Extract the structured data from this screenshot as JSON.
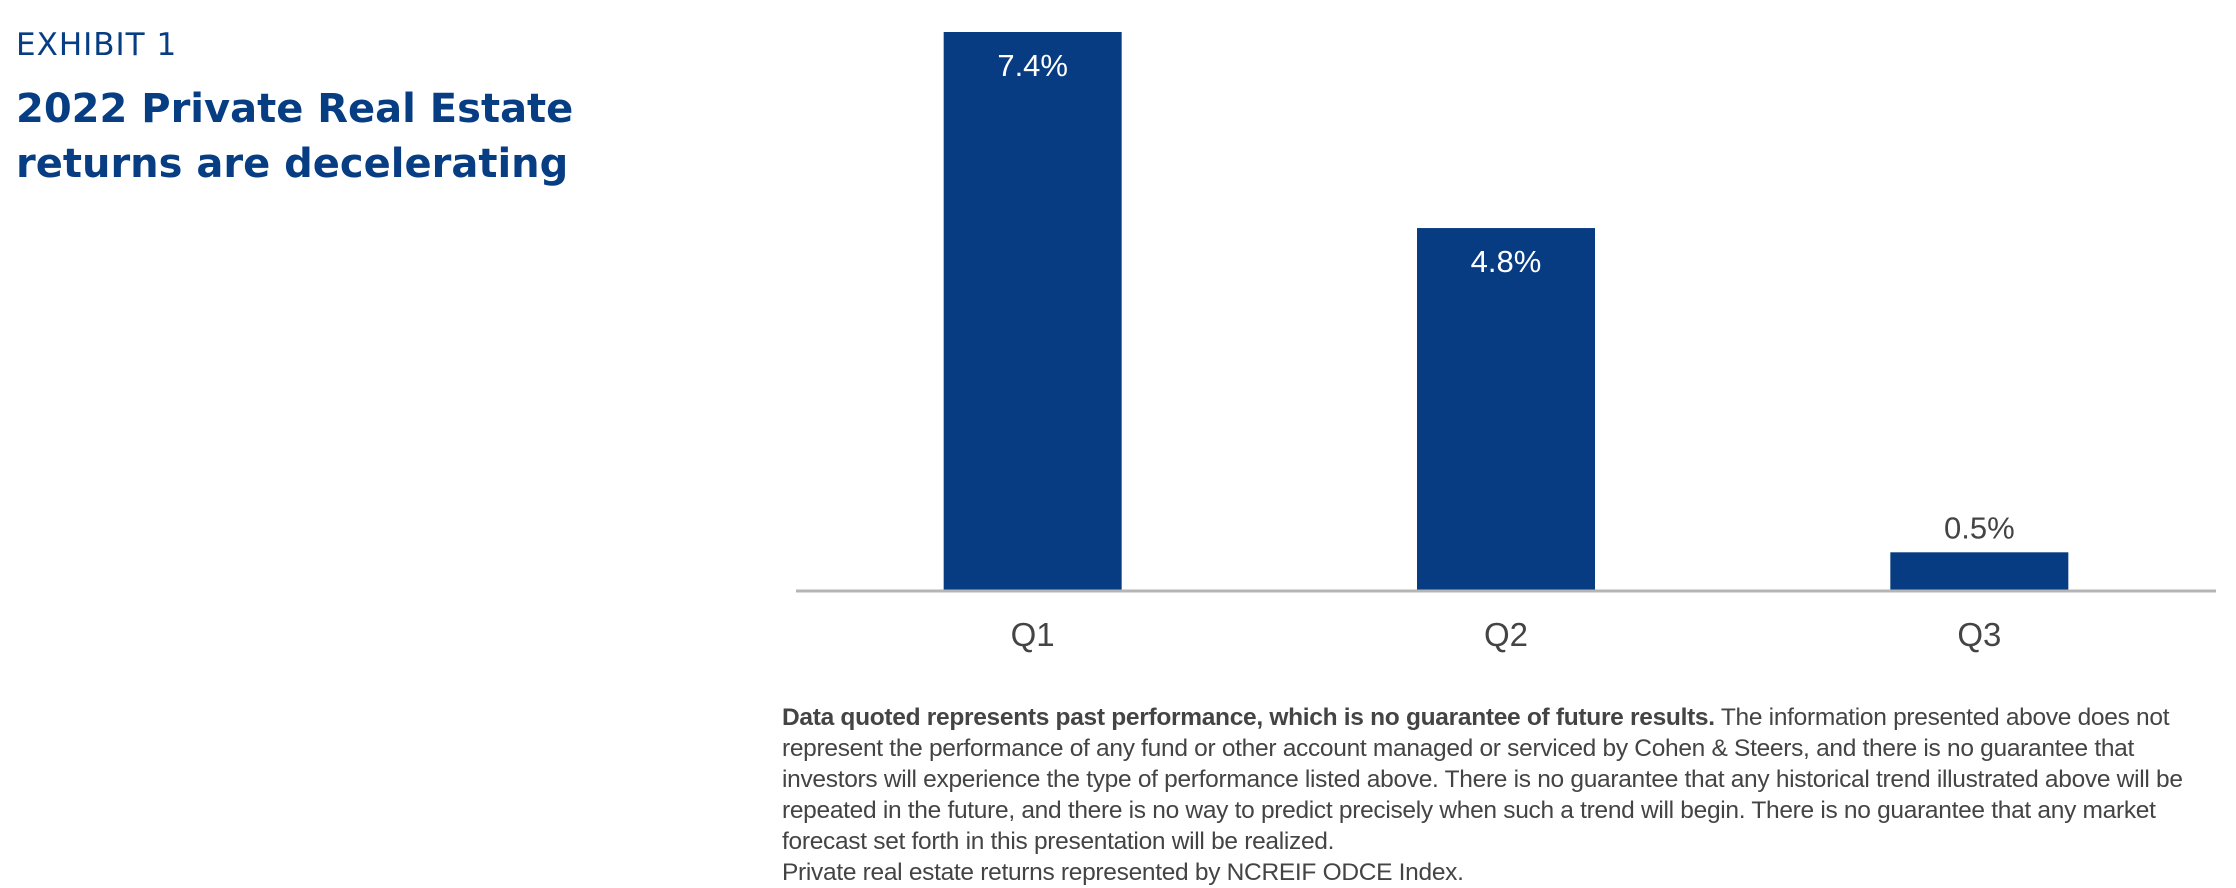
{
  "exhibit": {
    "label": "EXHIBIT 1",
    "title": "2022 Private Real Estate returns are decelerating"
  },
  "chart_data": {
    "type": "bar",
    "categories": [
      "Q1",
      "Q2",
      "Q3"
    ],
    "values": [
      7.4,
      4.8,
      0.5
    ],
    "value_labels": [
      "7.4%",
      "4.8%",
      "0.5%"
    ],
    "title": "2022 Private Real Estate returns are decelerating",
    "xlabel": "",
    "ylabel": "",
    "ylim": [
      0,
      7.4
    ],
    "grid": false,
    "legend": "none",
    "bar_color": "#073b82",
    "axis_color": "#b5b5b5"
  },
  "disclaimer": {
    "bold_text": "Data quoted represents past performance, which is no guarantee of future results.",
    "body_text": " The information presented above does not represent the performance of any fund or other account managed or serviced by Cohen & Steers, and there is no guarantee that investors will experience the type of performance listed above. There is no guarantee that any historical trend illustrated above will be repeated in the future, and there is no way to predict precisely when such a trend will begin. There is no guarantee that any market forecast set forth in this presentation will be realized.",
    "source_note": "Private real estate returns represented by NCREIF ODCE Index."
  }
}
